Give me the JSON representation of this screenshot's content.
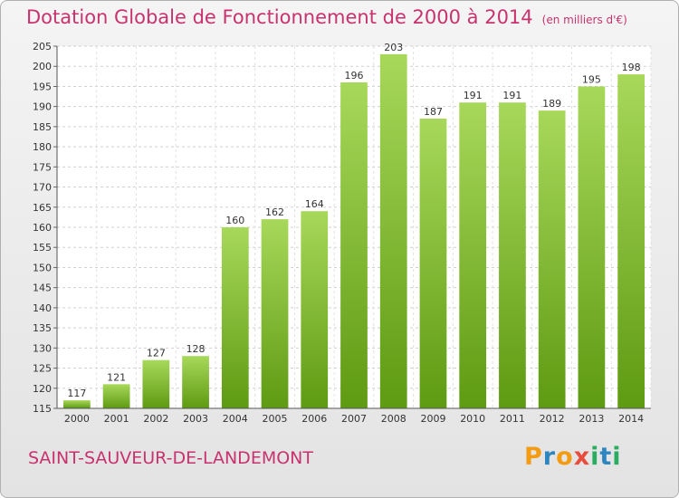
{
  "chart_data": {
    "type": "bar",
    "title": "Dotation Globale de Fonctionnement de 2000 à 2014",
    "unit": "(en milliers d'€)",
    "categories": [
      "2000",
      "2001",
      "2002",
      "2003",
      "2004",
      "2005",
      "2006",
      "2007",
      "2008",
      "2009",
      "2010",
      "2011",
      "2012",
      "2013",
      "2014"
    ],
    "values": [
      117,
      121,
      127,
      128,
      160,
      162,
      164,
      196,
      203,
      187,
      191,
      191,
      189,
      195,
      198
    ],
    "ylim": [
      115,
      205
    ],
    "yticks": [
      115,
      120,
      125,
      130,
      135,
      140,
      145,
      150,
      155,
      160,
      165,
      170,
      175,
      180,
      185,
      190,
      195,
      200,
      205
    ],
    "grid": true,
    "bar_color": "#8cc63f"
  },
  "footer": {
    "commune": "SAINT-SAUVEUR-DE-LANDEMONT",
    "logo_letters": [
      "P",
      "r",
      "o",
      "x",
      "i",
      "t",
      "i"
    ],
    "logo_colors": [
      "#f39c12",
      "#2e86c1",
      "#f39c12",
      "#e74c3c",
      "#27ae60",
      "#2e86c1",
      "#27ae60"
    ]
  }
}
